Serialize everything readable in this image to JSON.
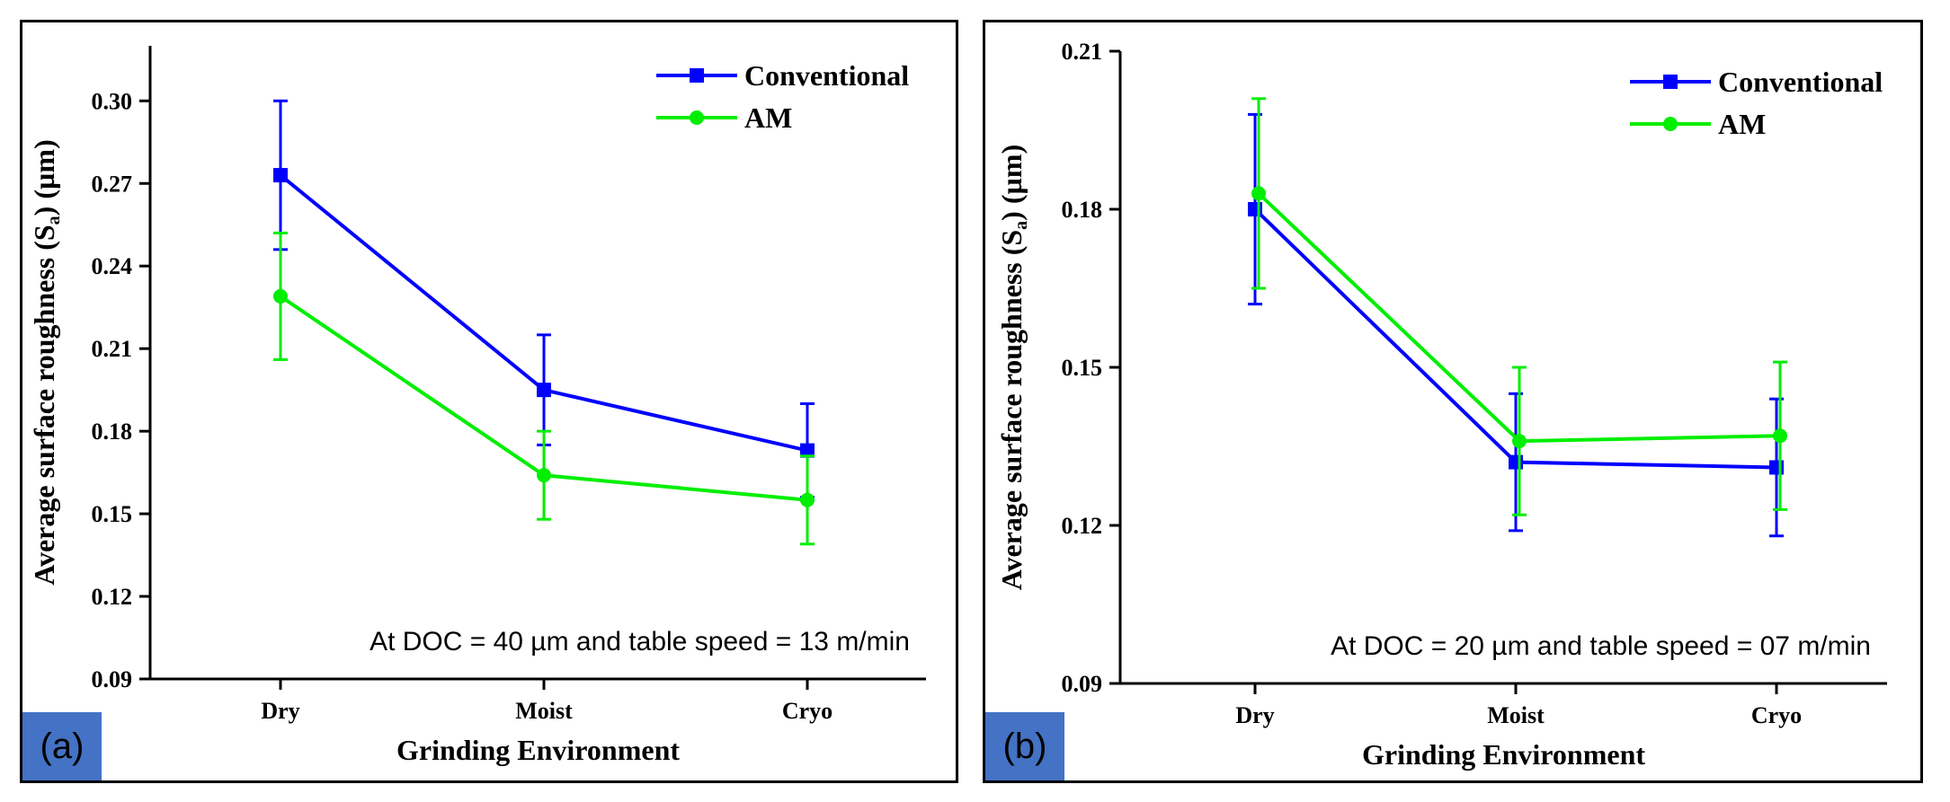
{
  "chart_data": [
    {
      "type": "line",
      "panel_label": "(a)",
      "categories": [
        "Dry",
        "Moist",
        "Cryo"
      ],
      "xlabel": "Grinding Environment",
      "ylabel_main": "Average surface roughness (S",
      "ylabel_sub": "a",
      "ylabel_end": ") (µm)",
      "ylim": [
        0.09,
        0.32
      ],
      "yticks": [
        0.09,
        0.12,
        0.15,
        0.18,
        0.21,
        0.24,
        0.27,
        0.3
      ],
      "ytick_labels": [
        "0.09",
        "0.12",
        "0.15",
        "0.18",
        "0.21",
        "0.24",
        "0.27",
        "0.30"
      ],
      "annotation": "At DOC = 40 µm and table speed = 13 m/min",
      "legend_position": "top-right",
      "series": [
        {
          "name": "Conventional",
          "marker": "square",
          "color": "#0000ff",
          "values": [
            0.273,
            0.195,
            0.173
          ],
          "errors": [
            0.027,
            0.02,
            0.017
          ]
        },
        {
          "name": "AM",
          "marker": "circle",
          "color": "#00ee00",
          "values": [
            0.229,
            0.164,
            0.155
          ],
          "errors": [
            0.023,
            0.016,
            0.016
          ]
        }
      ]
    },
    {
      "type": "line",
      "panel_label": "(b)",
      "categories": [
        "Dry",
        "Moist",
        "Cryo"
      ],
      "xlabel": "Grinding Environment",
      "ylabel_main": "Average surface roughness (S",
      "ylabel_sub": "a",
      "ylabel_end": ") (µm)",
      "ylim": [
        0.09,
        0.21
      ],
      "yticks": [
        0.09,
        0.12,
        0.15,
        0.18,
        0.21
      ],
      "ytick_labels": [
        "0.09",
        "0.12",
        "0.15",
        "0.18",
        "0.21"
      ],
      "annotation": "At DOC = 20 µm and table speed = 07 m/min",
      "legend_position": "top-right",
      "series": [
        {
          "name": "Conventional",
          "marker": "square",
          "color": "#0000ff",
          "values": [
            0.18,
            0.132,
            0.131
          ],
          "errors": [
            0.018,
            0.013,
            0.013
          ]
        },
        {
          "name": "AM",
          "marker": "circle",
          "color": "#00ee00",
          "values": [
            0.183,
            0.136,
            0.137
          ],
          "errors": [
            0.018,
            0.014,
            0.014
          ]
        }
      ]
    }
  ]
}
